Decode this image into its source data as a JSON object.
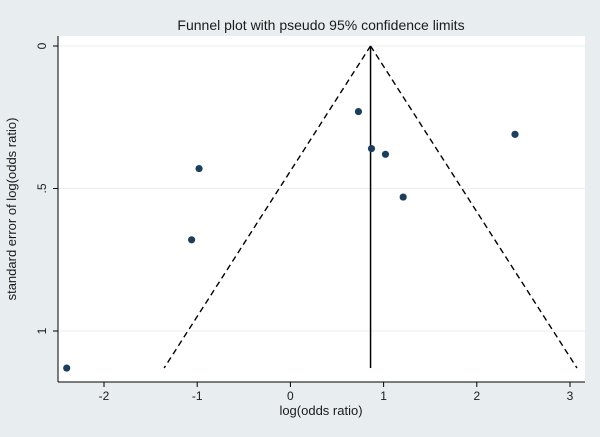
{
  "chart_data": {
    "type": "scatter",
    "title": "Funnel plot with pseudo 95% confidence limits",
    "xlabel": "log(odds ratio)",
    "ylabel": "standard error of log(odds ratio)",
    "xlim": [
      -2.45,
      3.1
    ],
    "ylim": [
      0,
      1.13
    ],
    "y_reversed": true,
    "x_ticks": [
      -2,
      -1,
      0,
      1,
      2,
      3
    ],
    "x_tick_labels": [
      "-2",
      "-1",
      "0",
      "1",
      "2",
      "3"
    ],
    "y_ticks": [
      0,
      0.5,
      1
    ],
    "y_tick_labels": [
      "0",
      ".5",
      "1"
    ],
    "grid": "horizontal",
    "pooled_estimate": 0.86,
    "ci_level": 0.95,
    "ci_max_se": 1.13,
    "points": [
      {
        "x": 0.73,
        "y": 0.23
      },
      {
        "x": 0.87,
        "y": 0.36
      },
      {
        "x": 1.02,
        "y": 0.38
      },
      {
        "x": 1.21,
        "y": 0.53
      },
      {
        "x": 2.41,
        "y": 0.31
      },
      {
        "x": -0.98,
        "y": 0.43
      },
      {
        "x": -1.06,
        "y": 0.68
      },
      {
        "x": -2.4,
        "y": 1.13
      }
    ],
    "colors": {
      "background": "#e8eef0",
      "plot_area": "#ffffff",
      "points": "#1c3f5e",
      "lines": "#000000",
      "grid": "#e8eef0"
    }
  }
}
